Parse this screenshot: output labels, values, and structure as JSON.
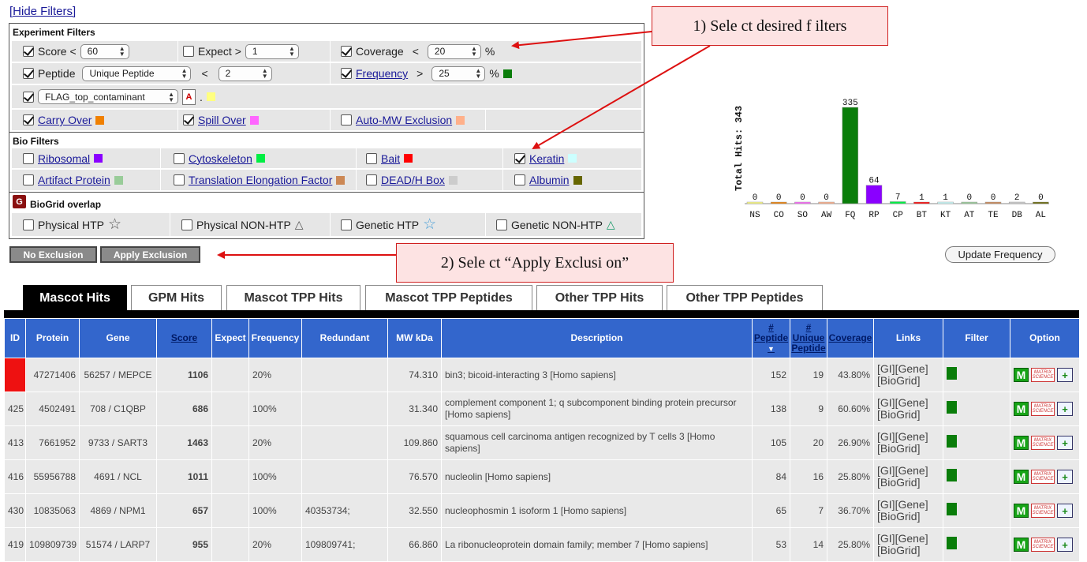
{
  "hide_filters": "[Hide Filters]",
  "experiment_filters": {
    "title": "Experiment Filters",
    "score_label": "Score <",
    "score_value": "60",
    "expect_label": "Expect >",
    "expect_value": "1",
    "coverage_label": "Coverage",
    "coverage_op": "<",
    "coverage_value": "20",
    "coverage_unit": "%",
    "peptide_label": "Peptide",
    "peptide_type": "Unique Peptide",
    "peptide_op": "<",
    "peptide_value": "2",
    "frequency_label": "Frequency",
    "frequency_op": ">",
    "frequency_value": "25",
    "frequency_unit": "%",
    "frequency_color": "#0a7d0a",
    "contaminant_value": "FLAG_top_contaminant",
    "contaminant_suffix": ".",
    "contaminant_color": "#ffff80",
    "carry_over": "Carry Over",
    "carry_over_color": "#f08000",
    "spill_over": "Spill Over",
    "spill_over_color": "#ff66ff",
    "auto_mw": "Auto-MW Exclusion",
    "auto_mw_color": "#ffb08a"
  },
  "bio_filters": {
    "title": "Bio Filters",
    "ribosomal": "Ribosomal",
    "ribosomal_color": "#8a00ff",
    "cytoskeleton": "Cytoskeleton",
    "cytoskeleton_color": "#00ee44",
    "bait": "Bait",
    "bait_color": "#ff0000",
    "keratin": "Keratin",
    "keratin_color": "#ccffff",
    "artifact": "Artifact Protein",
    "artifact_color": "#99cc99",
    "translation": "Translation Elongation Factor",
    "translation_color": "#cc8855",
    "dead": "DEAD/H Box",
    "dead_color": "#cccccc",
    "albumin": "Albumin",
    "albumin_color": "#666600"
  },
  "biogrid": {
    "title": "BioGrid overlap",
    "physical_htp": "Physical HTP",
    "physical_non_htp": "Physical NON-HTP",
    "genetic_htp": "Genetic HTP",
    "genetic_non_htp": "Genetic NON-HTP"
  },
  "buttons": {
    "no_exclusion": "No Exclusion",
    "apply_exclusion": "Apply Exclusion",
    "update_frequency": "Update Frequency"
  },
  "annotations": {
    "step1": "1)  Sele ct  desired f  ilters",
    "step2": "2)  Sele ct  “Apply Exclusi on”"
  },
  "chart_data": {
    "type": "bar",
    "ylabel": "Total Hits: 343",
    "categories": [
      "NS",
      "CO",
      "SO",
      "AW",
      "FQ",
      "RP",
      "CP",
      "BT",
      "KT",
      "AT",
      "TE",
      "DB",
      "AL"
    ],
    "values": [
      0,
      0,
      0,
      0,
      335,
      64,
      7,
      1,
      1,
      0,
      0,
      2,
      0
    ],
    "colors": [
      "#ffff80",
      "#f08000",
      "#ff66ff",
      "#ffb08a",
      "#0a7d0a",
      "#8a00ff",
      "#00ee44",
      "#ff0000",
      "#ccffff",
      "#99cc99",
      "#cc8855",
      "#cccccc",
      "#666600"
    ],
    "ylim": [
      0,
      335
    ]
  },
  "tabs": [
    "Mascot Hits",
    "GPM Hits",
    "Mascot TPP Hits",
    "Mascot TPP Peptides",
    "Other TPP Hits",
    "Other TPP Peptides"
  ],
  "table": {
    "headers": {
      "id": "ID",
      "protein": "Protein",
      "gene": "Gene",
      "score": "Score",
      "expect": "Expect",
      "frequency": "Frequency",
      "redundant": "Redundant",
      "mw": "MW kDa",
      "description": "Description",
      "peptide": "# Peptide",
      "unique_peptide": "# Unique Peptide",
      "coverage": "Coverage",
      "links": "Links",
      "filter": "Filter",
      "option": "Option"
    },
    "rows": [
      {
        "id": "",
        "protein": "47271406",
        "gene": "56257 / MEPCE",
        "score": "1106",
        "expect": "",
        "frequency": "20%",
        "redundant": "",
        "mw": "74.310",
        "description": "bin3; bicoid-interacting 3 [Homo sapiens]",
        "peptide": "152",
        "unique": "19",
        "coverage": "43.80%"
      },
      {
        "id": "425",
        "protein": "4502491",
        "gene": "708 / C1QBP",
        "score": "686",
        "expect": "",
        "frequency": "100%",
        "redundant": "",
        "mw": "31.340",
        "description": "complement component 1; q subcomponent binding protein precursor [Homo sapiens]",
        "peptide": "138",
        "unique": "9",
        "coverage": "60.60%"
      },
      {
        "id": "413",
        "protein": "7661952",
        "gene": "9733 / SART3",
        "score": "1463",
        "expect": "",
        "frequency": "20%",
        "redundant": "",
        "mw": "109.860",
        "description": "squamous cell carcinoma antigen recognized by T cells 3 [Homo sapiens]",
        "peptide": "105",
        "unique": "20",
        "coverage": "26.90%"
      },
      {
        "id": "416",
        "protein": "55956788",
        "gene": "4691 / NCL",
        "score": "1011",
        "expect": "",
        "frequency": "100%",
        "redundant": "",
        "mw": "76.570",
        "description": "nucleolin [Homo sapiens]",
        "peptide": "84",
        "unique": "16",
        "coverage": "25.80%"
      },
      {
        "id": "430",
        "protein": "10835063",
        "gene": "4869 / NPM1",
        "score": "657",
        "expect": "",
        "frequency": "100%",
        "redundant": "40353734;",
        "mw": "32.550",
        "description": "nucleophosmin 1 isoform 1 [Homo sapiens]",
        "peptide": "65",
        "unique": "7",
        "coverage": "36.70%"
      },
      {
        "id": "419",
        "protein": "109809739",
        "gene": "51574 / LARP7",
        "score": "955",
        "expect": "",
        "frequency": "20%",
        "redundant": "109809741;",
        "mw": "66.860",
        "description": "La ribonucleoprotein domain family; member 7 [Homo sapiens]",
        "peptide": "53",
        "unique": "14",
        "coverage": "25.80%"
      }
    ],
    "links": {
      "gi": "[GI]",
      "gene": "[Gene]",
      "biogrid": "[BioGrid]"
    },
    "option_m": "M",
    "option_ms_top": "MATRIX",
    "option_ms_bottom": "SCIENCE",
    "option_q": "+"
  }
}
